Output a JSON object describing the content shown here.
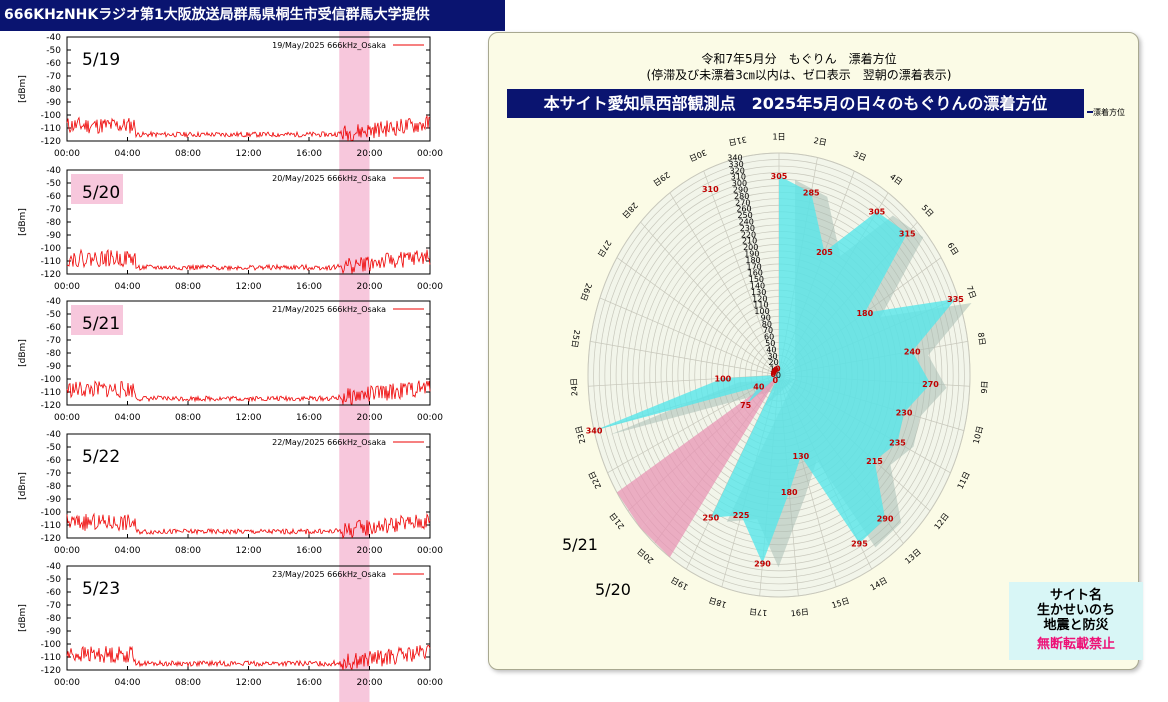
{
  "header": {
    "title": "666KHzNHKラジオ第1大阪放送局群馬県桐生市受信群馬大学提供"
  },
  "spectrograms": [
    {
      "caption": "19/May/2025 666kHz_Osaka",
      "date_label": "5/19",
      "label_highlight": false,
      "seed": 11
    },
    {
      "caption": "20/May/2025 666kHz_Osaka",
      "date_label": "5/20",
      "label_highlight": true,
      "seed": 22
    },
    {
      "caption": "21/May/2025 666kHz_Osaka",
      "date_label": "5/21",
      "label_highlight": true,
      "seed": 33
    },
    {
      "caption": "22/May/2025 666kHz_Osaka",
      "date_label": "5/22",
      "label_highlight": false,
      "seed": 44
    },
    {
      "caption": "23/May/2025 666kHz_Osaka",
      "date_label": "5/23",
      "label_highlight": false,
      "seed": 55
    }
  ],
  "spectrogram_axes": {
    "y_ticks": [
      "-40",
      "-50",
      "-60",
      "-70",
      "-80",
      "-90",
      "-100",
      "-110",
      "-120"
    ],
    "x_ticks": [
      "00:00",
      "04:00",
      "08:00",
      "12:00",
      "16:00",
      "20:00",
      "00:00"
    ],
    "ylabel": "[dBm]",
    "highlight_hours": [
      18,
      20
    ],
    "colors": {
      "signal": "#ee0000",
      "highlight": "#f7c7dc",
      "label_bg": "#f7c7dc"
    }
  },
  "radar": {
    "title": "令和7年5月分　もぐりん　漂着方位",
    "subtitle": "(停滞及び未漂着3㎝以内は、ゼロ表示　翌朝の漂着表示)",
    "banner": "本サイト愛知県西部観測点　2025年5月の日々のもぐりんの漂着方位",
    "legend": "漂着方位",
    "day_labels": [
      "1日",
      "2日",
      "3日",
      "4日",
      "5日",
      "6日",
      "7日",
      "8日",
      "9日",
      "10日",
      "11日",
      "12日",
      "13日",
      "14日",
      "15日",
      "16日",
      "17日",
      "18日",
      "19日",
      "20日",
      "21日",
      "22日",
      "23日",
      "24日",
      "25日",
      "26日",
      "27日",
      "28日",
      "29日",
      "30日",
      "31日"
    ],
    "radial_ticks": [
      "0",
      "10",
      "20",
      "30",
      "40",
      "50",
      "60",
      "70",
      "80",
      "90",
      "100",
      "110",
      "120",
      "130",
      "140",
      "150",
      "160",
      "170",
      "180",
      "190",
      "200",
      "210",
      "220",
      "230",
      "240",
      "250",
      "260",
      "270",
      "280",
      "290",
      "300",
      "310",
      "320",
      "330",
      "340"
    ],
    "annotations": [
      "5/21",
      "5/20"
    ]
  },
  "chart_data": {
    "type": "radar",
    "title": "令和7年5月分　もぐりん　漂着方位",
    "categories": [
      "1日",
      "2日",
      "3日",
      "4日",
      "5日",
      "6日",
      "7日",
      "8日",
      "9日",
      "10日",
      "11日",
      "12日",
      "13日",
      "14日",
      "15日",
      "16日",
      "17日",
      "18日",
      "19日",
      "20日",
      "21日",
      "22日",
      "23日",
      "24日",
      "25日",
      "26日",
      "27日",
      "28日",
      "29日",
      "30日",
      "31日"
    ],
    "series": [
      {
        "name": "漂着方位",
        "values": [
          305,
          285,
          205,
          305,
          315,
          180,
          335,
          240,
          270,
          230,
          235,
          215,
          290,
          295,
          130,
          180,
          290,
          225,
          250,
          0,
          75,
          40,
          340,
          100,
          0,
          0,
          0,
          0,
          0,
          310,
          0
        ]
      }
    ],
    "ylim": [
      0,
      340
    ],
    "highlight_days": [
      "20日",
      "21日"
    ],
    "colors": {
      "fill": "#56e6ea",
      "shadow": "#a9bdb4",
      "highlight": "#e894b4",
      "grid": "#c8c8bc",
      "value_label": "#c00000"
    }
  },
  "site": {
    "name": "サイト名",
    "line1": "生かせいのち",
    "line2": "地震と防災",
    "warning": "無断転載禁止"
  }
}
